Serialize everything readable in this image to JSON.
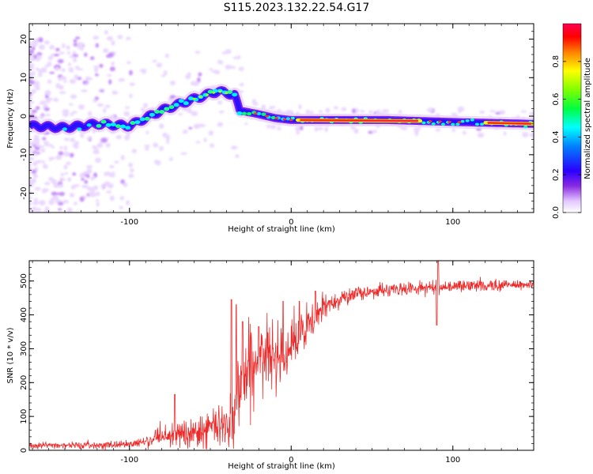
{
  "title": "S115.2023.132.22.54.G17",
  "colors": {
    "line": "#ee2b2b",
    "axis": "#000000",
    "background": "#ffffff"
  },
  "chart_data": [
    {
      "type": "heatmap",
      "xlabel": "Height of straight line (km)",
      "ylabel": "Frequency (Hz)",
      "xlim": [
        -162,
        150
      ],
      "ylim": [
        -25,
        24
      ],
      "xticks": [
        -100,
        0,
        100
      ],
      "yticks": [
        -20,
        -10,
        0,
        10,
        20
      ],
      "colorbar": {
        "label": "Normalized spectral amplitude",
        "range": [
          0,
          1
        ],
        "ticks": [
          "0.0",
          "0.2",
          "0.4",
          "0.6",
          "0.8"
        ],
        "colormap": "gist_rainbow_r"
      },
      "ridge": [
        {
          "x": -162,
          "y": -2.5
        },
        {
          "x": -140,
          "y": -3.0
        },
        {
          "x": -120,
          "y": -2.0
        },
        {
          "x": -100,
          "y": -2.5
        },
        {
          "x": -80,
          "y": 1.5
        },
        {
          "x": -60,
          "y": 4.5
        },
        {
          "x": -45,
          "y": 6.5
        },
        {
          "x": -35,
          "y": 5.5
        },
        {
          "x": -32,
          "y": 1.5
        },
        {
          "x": -20,
          "y": 0.5
        },
        {
          "x": -10,
          "y": -0.5
        },
        {
          "x": 0,
          "y": -1.0
        },
        {
          "x": 20,
          "y": -1.0
        },
        {
          "x": 60,
          "y": -1.0
        },
        {
          "x": 100,
          "y": -1.5
        },
        {
          "x": 130,
          "y": -1.8
        },
        {
          "x": 150,
          "y": -2.0
        }
      ]
    },
    {
      "type": "line",
      "xlabel": "Height of straight line (km)",
      "ylabel": "SNR (10 * v/v)",
      "xlim": [
        -162,
        150
      ],
      "ylim": [
        0,
        560
      ],
      "xticks": [
        -100,
        0,
        100
      ],
      "yticks": [
        0,
        100,
        200,
        300,
        400,
        500
      ],
      "series": [
        {
          "trend": [
            {
              "x": -162,
              "y": 15
            },
            {
              "x": -120,
              "y": 15
            },
            {
              "x": -100,
              "y": 18
            },
            {
              "x": -80,
              "y": 35
            },
            {
              "x": -60,
              "y": 55
            },
            {
              "x": -45,
              "y": 70
            },
            {
              "x": -38,
              "y": 90
            },
            {
              "x": -35,
              "y": 130
            },
            {
              "x": -30,
              "y": 220
            },
            {
              "x": -25,
              "y": 250
            },
            {
              "x": -20,
              "y": 265
            },
            {
              "x": -10,
              "y": 285
            },
            {
              "x": 0,
              "y": 310
            },
            {
              "x": 10,
              "y": 360
            },
            {
              "x": 20,
              "y": 420
            },
            {
              "x": 30,
              "y": 450
            },
            {
              "x": 50,
              "y": 470
            },
            {
              "x": 80,
              "y": 480
            },
            {
              "x": 90,
              "y": 480
            },
            {
              "x": 100,
              "y": 485
            },
            {
              "x": 150,
              "y": 490
            }
          ],
          "noise": [
            {
              "x": -162,
              "y": 8
            },
            {
              "x": -100,
              "y": 10
            },
            {
              "x": -80,
              "y": 25
            },
            {
              "x": -60,
              "y": 40
            },
            {
              "x": -40,
              "y": 70
            },
            {
              "x": -35,
              "y": 110
            },
            {
              "x": -25,
              "y": 110
            },
            {
              "x": -10,
              "y": 80
            },
            {
              "x": 10,
              "y": 60
            },
            {
              "x": 25,
              "y": 25
            },
            {
              "x": 50,
              "y": 18
            },
            {
              "x": 150,
              "y": 15
            }
          ],
          "spikes": [
            {
              "x": -72,
              "y": 165
            },
            {
              "x": -37,
              "y": 445
            },
            {
              "x": -34,
              "y": 430
            },
            {
              "x": -30,
              "y": 380
            },
            {
              "x": -20,
              "y": 365
            },
            {
              "x": -5,
              "y": 440
            },
            {
              "x": 5,
              "y": 440
            },
            {
              "x": 15,
              "y": 470
            },
            {
              "x": 91,
              "y": 560
            },
            {
              "x": 90,
              "y": 370
            }
          ]
        }
      ]
    }
  ]
}
